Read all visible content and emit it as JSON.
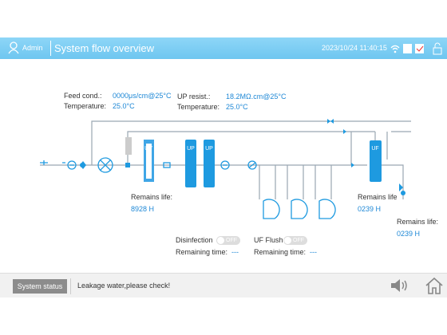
{
  "header": {
    "user": "Admin",
    "title": "System flow overview",
    "datetime": "2023/10/24 11:40:15"
  },
  "feed": {
    "cond_label": "Feed cond.:",
    "cond_value": "0000μs/cm@25°C",
    "temp_label": "Temperature:",
    "temp_value": "25.0°C"
  },
  "up": {
    "resist_label": "UP resist.:",
    "resist_value": "18.2MΩ.cm@25°C",
    "temp_label": "Temperature:",
    "temp_value": "25.0°C"
  },
  "components": {
    "uv": "UV",
    "up1": "UP",
    "up2": "UP",
    "uf": "UF"
  },
  "life": [
    {
      "label": "Remains life:",
      "value": "8928 H"
    },
    {
      "label": "Remains life",
      "value": "0239 H"
    },
    {
      "label": "Remains life:",
      "value": "0239 H"
    }
  ],
  "controls": [
    {
      "label": "Disinfection",
      "state": "OFF",
      "time_label": "Remaining time:",
      "time_value": "---"
    },
    {
      "label": "UF Flush",
      "state": "OFF",
      "time_label": "Remaining time:",
      "time_value": "---"
    }
  ],
  "footer": {
    "button": "System status",
    "message": "Leakage water,please check!"
  }
}
